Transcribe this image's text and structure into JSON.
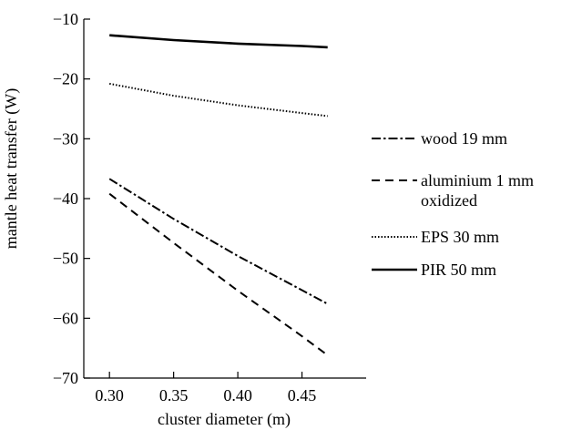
{
  "chart_data": {
    "type": "line",
    "title": "",
    "xlabel": "cluster diameter (m)",
    "ylabel": "mantle heat transfer  (W)",
    "xlim": [
      0.28,
      0.5
    ],
    "ylim": [
      -70,
      -10
    ],
    "xticks": [
      0.3,
      0.35,
      0.4,
      0.45
    ],
    "xtick_labels": [
      "0.30",
      "0.35",
      "0.40",
      "0.45"
    ],
    "yticks": [
      -10,
      -20,
      -30,
      -40,
      -50,
      -60,
      -70
    ],
    "ytick_labels": [
      "−10",
      "−20",
      "−30",
      "−40",
      "−50",
      "−60",
      "−70"
    ],
    "grid": false,
    "legend_position": "right",
    "x": [
      0.3,
      0.35,
      0.4,
      0.45,
      0.47
    ],
    "series": [
      {
        "name": "wood 19 mm",
        "values": [
          -36.7,
          -43.4,
          -49.6,
          -55.3,
          -57.6
        ],
        "dash": "dashdot"
      },
      {
        "name": "aluminium 1 mm",
        "name_line2": "oxidized",
        "values": [
          -39.2,
          -47.4,
          -55.4,
          -63.0,
          -66.2
        ],
        "dash": "dashed"
      },
      {
        "name": "EPS 30 mm",
        "values": [
          -20.8,
          -22.8,
          -24.4,
          -25.7,
          -26.2
        ],
        "dash": "dotted"
      },
      {
        "name": "PIR 50 mm",
        "values": [
          -12.7,
          -13.5,
          -14.1,
          -14.5,
          -14.7
        ],
        "dash": "solid"
      }
    ]
  }
}
